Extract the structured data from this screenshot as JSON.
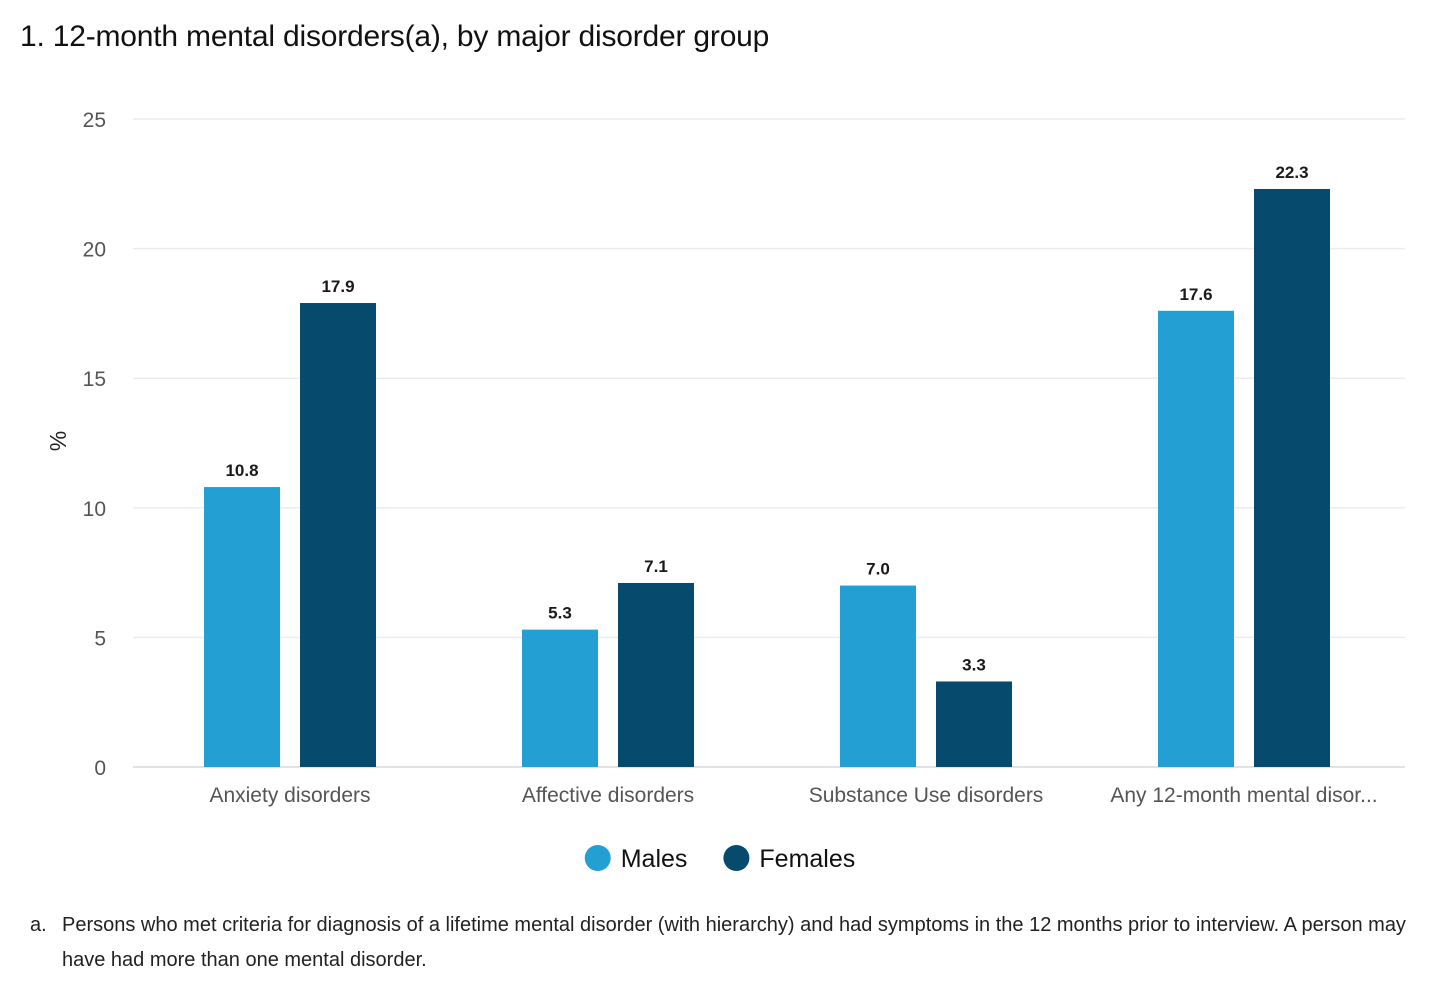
{
  "chart_data": {
    "type": "bar",
    "title": "1. 12-month mental disorders(a), by major disorder group",
    "xlabel": "",
    "ylabel": "%",
    "ylim": [
      0,
      25
    ],
    "yticks": [
      0,
      5,
      10,
      15,
      20,
      25
    ],
    "grid": true,
    "legend_position": "bottom-center",
    "categories": [
      "Anxiety disorders",
      "Affective disorders",
      "Substance Use disorders",
      "Any 12-month mental disor..."
    ],
    "series": [
      {
        "name": "Males",
        "color": "#239fd3",
        "values": [
          10.8,
          5.3,
          7.0,
          17.6
        ]
      },
      {
        "name": "Females",
        "color": "#064a6e",
        "values": [
          17.9,
          7.1,
          3.3,
          22.3
        ]
      }
    ],
    "data_label_format": 1
  },
  "footnote": {
    "marker": "a.",
    "text": "Persons who met criteria for diagnosis of a lifetime mental disorder (with hierarchy) and had symptoms in the 12 months prior to interview. A person may have had more than one mental disorder."
  }
}
